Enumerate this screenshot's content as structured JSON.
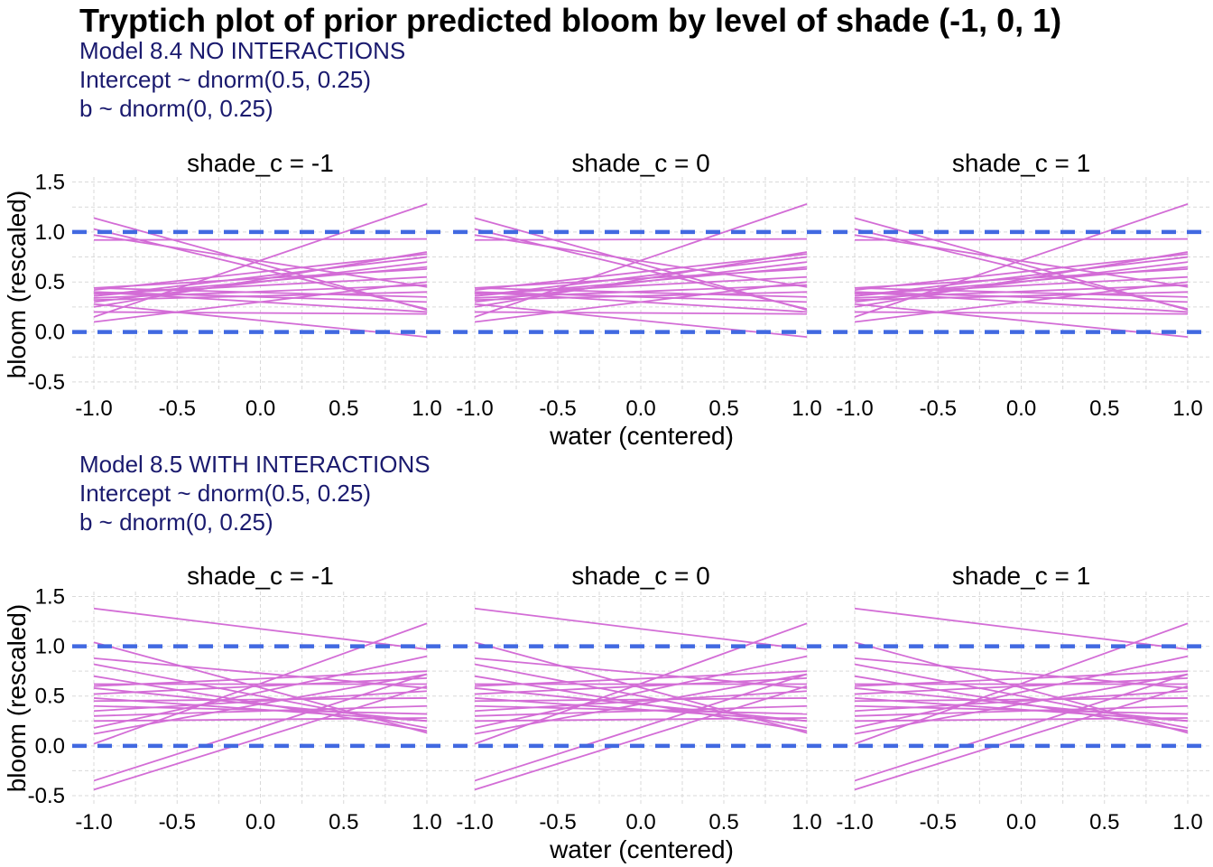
{
  "title": "Tryptich plot of prior predicted bloom by level of shade (-1, 0, 1)",
  "line_color": "#d36dd6",
  "ref_line_color": "#4169e1",
  "subtitle_color": "#1a1a6e",
  "chart_data": [
    {
      "type": "line",
      "subtitle": [
        "Model 8.4 NO INTERACTIONS",
        "Intercept ~ dnorm(0.5, 0.25)",
        "b ~ dnorm(0, 0.25)"
      ],
      "facets": [
        "shade_c = -1",
        "shade_c = 0",
        "shade_c = 1"
      ],
      "xlabel": "water (centered)",
      "ylabel": "bloom (rescaled)",
      "xlim": [
        -1.0,
        1.0
      ],
      "ylim": [
        -0.6,
        1.55
      ],
      "x_ticks": [
        "-1.0",
        "-0.5",
        "0.0",
        "0.5",
        "1.0"
      ],
      "y_ticks": [
        "1.5",
        "1.0",
        "0.5",
        "0.0",
        "-0.5"
      ],
      "reference_lines": [
        0.0,
        1.0
      ],
      "grid": true,
      "series": [
        {
          "x": [
            -1,
            1
          ],
          "y": [
            1.14,
            0.22
          ]
        },
        {
          "x": [
            -1,
            1
          ],
          "y": [
            1.03,
            0.23
          ]
        },
        {
          "x": [
            -1,
            1
          ],
          "y": [
            0.97,
            0.45
          ]
        },
        {
          "x": [
            -1,
            1
          ],
          "y": [
            0.92,
            0.93
          ]
        },
        {
          "x": [
            -1,
            1
          ],
          "y": [
            0.44,
            0.63
          ]
        },
        {
          "x": [
            -1,
            1
          ],
          "y": [
            0.42,
            0.78
          ]
        },
        {
          "x": [
            -1,
            1
          ],
          "y": [
            0.4,
            0.3
          ]
        },
        {
          "x": [
            -1,
            1
          ],
          "y": [
            0.38,
            0.55
          ]
        },
        {
          "x": [
            -1,
            1
          ],
          "y": [
            0.36,
            0.75
          ]
        },
        {
          "x": [
            -1,
            1
          ],
          "y": [
            0.34,
            0.47
          ]
        },
        {
          "x": [
            -1,
            1
          ],
          "y": [
            0.32,
            0.4
          ]
        },
        {
          "x": [
            -1,
            1
          ],
          "y": [
            0.3,
            0.7
          ]
        },
        {
          "x": [
            -1,
            1
          ],
          "y": [
            0.25,
            0.8
          ]
        },
        {
          "x": [
            -1,
            1
          ],
          "y": [
            0.2,
            0.18
          ]
        },
        {
          "x": [
            -1,
            1
          ],
          "y": [
            0.15,
            1.28
          ]
        },
        {
          "x": [
            -1,
            1
          ],
          "y": [
            0.1,
            0.5
          ]
        },
        {
          "x": [
            -1,
            1
          ],
          "y": [
            0.44,
            0.35
          ]
        },
        {
          "x": [
            -1,
            1
          ],
          "y": [
            0.28,
            -0.05
          ]
        },
        {
          "x": [
            -1,
            1
          ],
          "y": [
            0.4,
            0.2
          ]
        },
        {
          "x": [
            -1,
            1
          ],
          "y": [
            0.36,
            0.65
          ]
        }
      ]
    },
    {
      "type": "line",
      "subtitle": [
        "Model 8.5 WITH INTERACTIONS",
        "Intercept ~ dnorm(0.5, 0.25)",
        "b ~ dnorm(0, 0.25)"
      ],
      "facets": [
        "shade_c = -1",
        "shade_c = 0",
        "shade_c = 1"
      ],
      "xlabel": "water (centered)",
      "ylabel": "bloom (rescaled)",
      "xlim": [
        -1.0,
        1.0
      ],
      "ylim": [
        -0.6,
        1.55
      ],
      "x_ticks": [
        "-1.0",
        "-0.5",
        "0.0",
        "0.5",
        "1.0"
      ],
      "y_ticks": [
        "1.5",
        "1.0",
        "0.5",
        "0.0",
        "-0.5"
      ],
      "reference_lines": [
        0.0,
        1.0
      ],
      "grid": true,
      "series": [
        {
          "x": [
            -1,
            1
          ],
          "y": [
            1.38,
            0.97
          ]
        },
        {
          "x": [
            -1,
            1
          ],
          "y": [
            1.04,
            0.13
          ]
        },
        {
          "x": [
            -1,
            1
          ],
          "y": [
            0.88,
            0.58
          ]
        },
        {
          "x": [
            -1,
            1
          ],
          "y": [
            0.82,
            0.18
          ]
        },
        {
          "x": [
            -1,
            1
          ],
          "y": [
            0.62,
            0.62
          ]
        },
        {
          "x": [
            -1,
            1
          ],
          "y": [
            0.6,
            0.75
          ]
        },
        {
          "x": [
            -1,
            1
          ],
          "y": [
            0.52,
            0.68
          ]
        },
        {
          "x": [
            -1,
            1
          ],
          "y": [
            0.48,
            0.25
          ]
        },
        {
          "x": [
            -1,
            1
          ],
          "y": [
            0.45,
            0.48
          ]
        },
        {
          "x": [
            -1,
            1
          ],
          "y": [
            0.4,
            0.32
          ]
        },
        {
          "x": [
            -1,
            1
          ],
          "y": [
            0.3,
            0.4
          ]
        },
        {
          "x": [
            -1,
            1
          ],
          "y": [
            0.25,
            0.28
          ]
        },
        {
          "x": [
            -1,
            1
          ],
          "y": [
            0.18,
            0.9
          ]
        },
        {
          "x": [
            -1,
            1
          ],
          "y": [
            0.12,
            0.72
          ]
        },
        {
          "x": [
            -1,
            1
          ],
          "y": [
            0.02,
            1.23
          ]
        },
        {
          "x": [
            -1,
            1
          ],
          "y": [
            0.7,
            0.15
          ]
        },
        {
          "x": [
            -1,
            1
          ],
          "y": [
            -0.35,
            0.72
          ]
        },
        {
          "x": [
            -1,
            1
          ],
          "y": [
            -0.44,
            0.6
          ]
        },
        {
          "x": [
            -1,
            1
          ],
          "y": [
            0.58,
            0.25
          ]
        },
        {
          "x": [
            -1,
            1
          ],
          "y": [
            0.35,
            0.55
          ]
        }
      ]
    }
  ]
}
